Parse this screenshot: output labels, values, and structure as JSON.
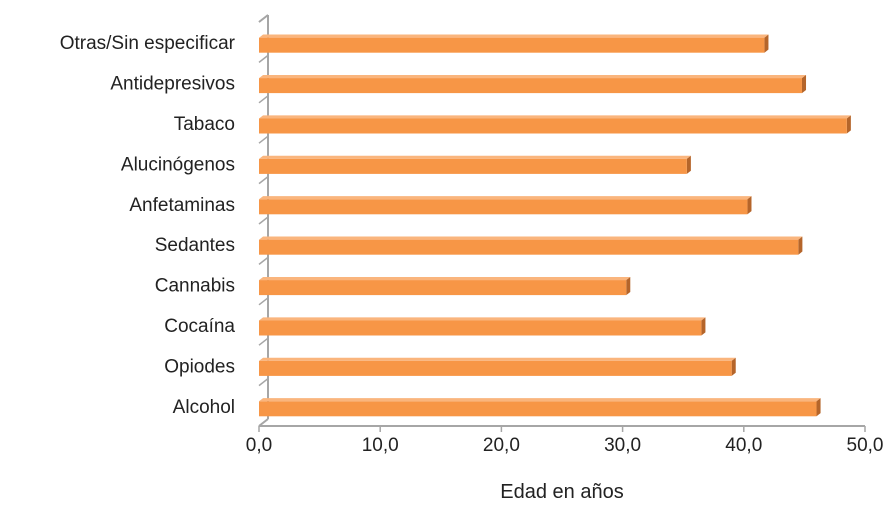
{
  "chart_data": {
    "type": "bar",
    "orientation": "horizontal",
    "categories": [
      "Alcohol",
      "Opiodes",
      "Cocaína",
      "Cannabis",
      "Sedantes",
      "Anfetaminas",
      "Alucinógenos",
      "Tabaco",
      "Antidepresivos",
      "Otras/Sin especificar"
    ],
    "values": [
      46.0,
      39.0,
      36.5,
      30.3,
      44.5,
      40.3,
      35.3,
      48.5,
      44.8,
      41.7
    ],
    "xlabel": "Edad en años",
    "ylabel": "",
    "xlim": [
      0,
      50
    ],
    "xticks": [
      "0,0",
      "10,0",
      "20,0",
      "30,0",
      "40,0",
      "50,0"
    ],
    "grid": false,
    "legend": "none",
    "colors": {
      "bar_front": "#F79646",
      "bar_top": "#FAB57D",
      "bar_side": "#B5652A",
      "axis": "#A6A6A6"
    }
  }
}
